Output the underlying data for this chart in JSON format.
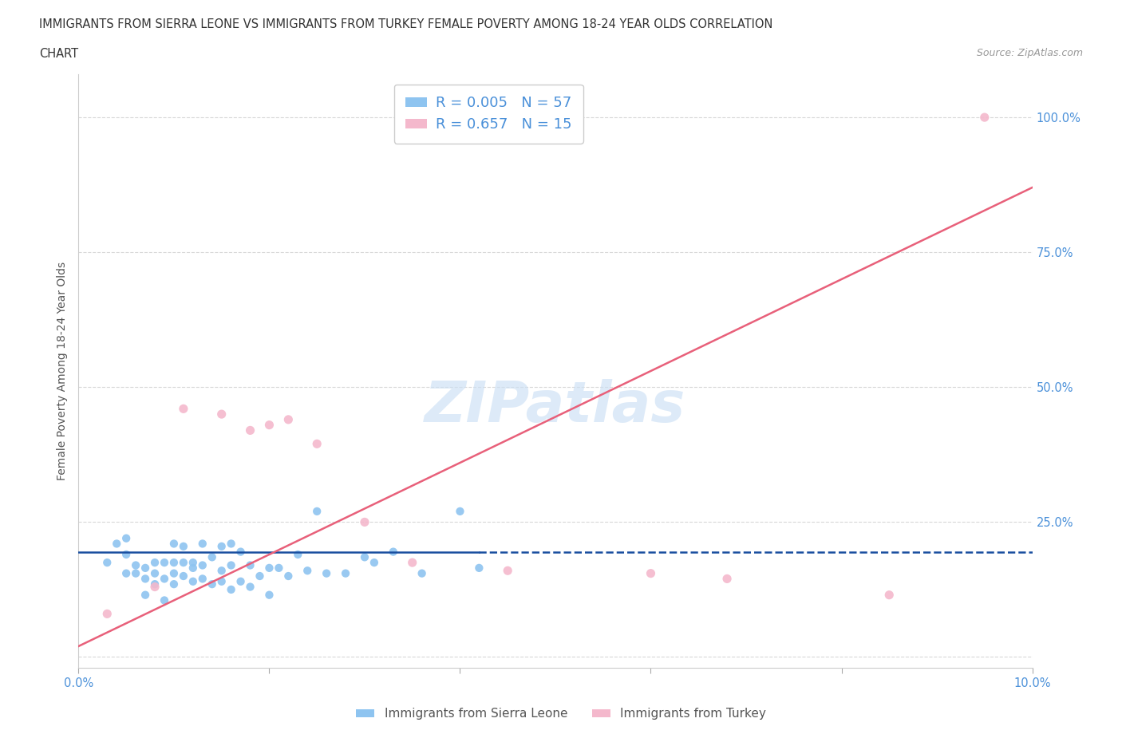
{
  "title_line1": "IMMIGRANTS FROM SIERRA LEONE VS IMMIGRANTS FROM TURKEY FEMALE POVERTY AMONG 18-24 YEAR OLDS CORRELATION",
  "title_line2": "CHART",
  "source_text": "Source: ZipAtlas.com",
  "ylabel": "Female Poverty Among 18-24 Year Olds",
  "xlim": [
    0.0,
    0.1
  ],
  "ylim": [
    -0.02,
    1.08
  ],
  "plot_ylim": [
    0.0,
    1.0
  ],
  "x_ticks": [
    0.0,
    0.02,
    0.04,
    0.06,
    0.08,
    0.1
  ],
  "x_tick_labels": [
    "0.0%",
    "",
    "",
    "",
    "",
    "10.0%"
  ],
  "y_ticks": [
    0.0,
    0.25,
    0.5,
    0.75,
    1.0
  ],
  "y_tick_labels": [
    "",
    "25.0%",
    "50.0%",
    "75.0%",
    "100.0%"
  ],
  "bg_color": "#ffffff",
  "grid_color": "#d8d8d8",
  "watermark": "ZIPatlas",
  "sierra_leone_color": "#8ec4f0",
  "turkey_color": "#f4b8cc",
  "sierra_leone_line_color": "#1a4fa0",
  "turkey_line_color": "#e8607a",
  "right_label_color": "#4a90d9",
  "tick_label_color": "#4a90d9",
  "R_sierra": 0.005,
  "N_sierra": 57,
  "R_turkey": 0.657,
  "N_turkey": 15,
  "sierra_leone_line_y": [
    0.195,
    0.195
  ],
  "turkey_line": {
    "x0": 0.0,
    "y0": 0.02,
    "x1": 0.1,
    "y1": 0.87
  },
  "sierra_leone_x": [
    0.003,
    0.004,
    0.005,
    0.005,
    0.005,
    0.006,
    0.006,
    0.007,
    0.007,
    0.007,
    0.008,
    0.008,
    0.008,
    0.009,
    0.009,
    0.009,
    0.01,
    0.01,
    0.01,
    0.01,
    0.011,
    0.011,
    0.011,
    0.012,
    0.012,
    0.012,
    0.013,
    0.013,
    0.013,
    0.014,
    0.014,
    0.015,
    0.015,
    0.015,
    0.016,
    0.016,
    0.016,
    0.017,
    0.017,
    0.018,
    0.018,
    0.019,
    0.02,
    0.02,
    0.021,
    0.022,
    0.023,
    0.024,
    0.025,
    0.026,
    0.028,
    0.03,
    0.031,
    0.033,
    0.036,
    0.04,
    0.042
  ],
  "sierra_leone_y": [
    0.175,
    0.21,
    0.19,
    0.155,
    0.22,
    0.17,
    0.155,
    0.145,
    0.165,
    0.115,
    0.135,
    0.155,
    0.175,
    0.145,
    0.175,
    0.105,
    0.135,
    0.155,
    0.175,
    0.21,
    0.15,
    0.175,
    0.205,
    0.14,
    0.165,
    0.175,
    0.145,
    0.17,
    0.21,
    0.135,
    0.185,
    0.14,
    0.16,
    0.205,
    0.125,
    0.17,
    0.21,
    0.14,
    0.195,
    0.13,
    0.17,
    0.15,
    0.115,
    0.165,
    0.165,
    0.15,
    0.19,
    0.16,
    0.27,
    0.155,
    0.155,
    0.185,
    0.175,
    0.195,
    0.155,
    0.27,
    0.165
  ],
  "turkey_x": [
    0.003,
    0.008,
    0.011,
    0.015,
    0.018,
    0.02,
    0.022,
    0.025,
    0.03,
    0.035,
    0.045,
    0.06,
    0.068,
    0.085,
    0.095
  ],
  "turkey_y": [
    0.08,
    0.13,
    0.46,
    0.45,
    0.42,
    0.43,
    0.44,
    0.395,
    0.25,
    0.175,
    0.16,
    0.155,
    0.145,
    0.115,
    1.0
  ]
}
